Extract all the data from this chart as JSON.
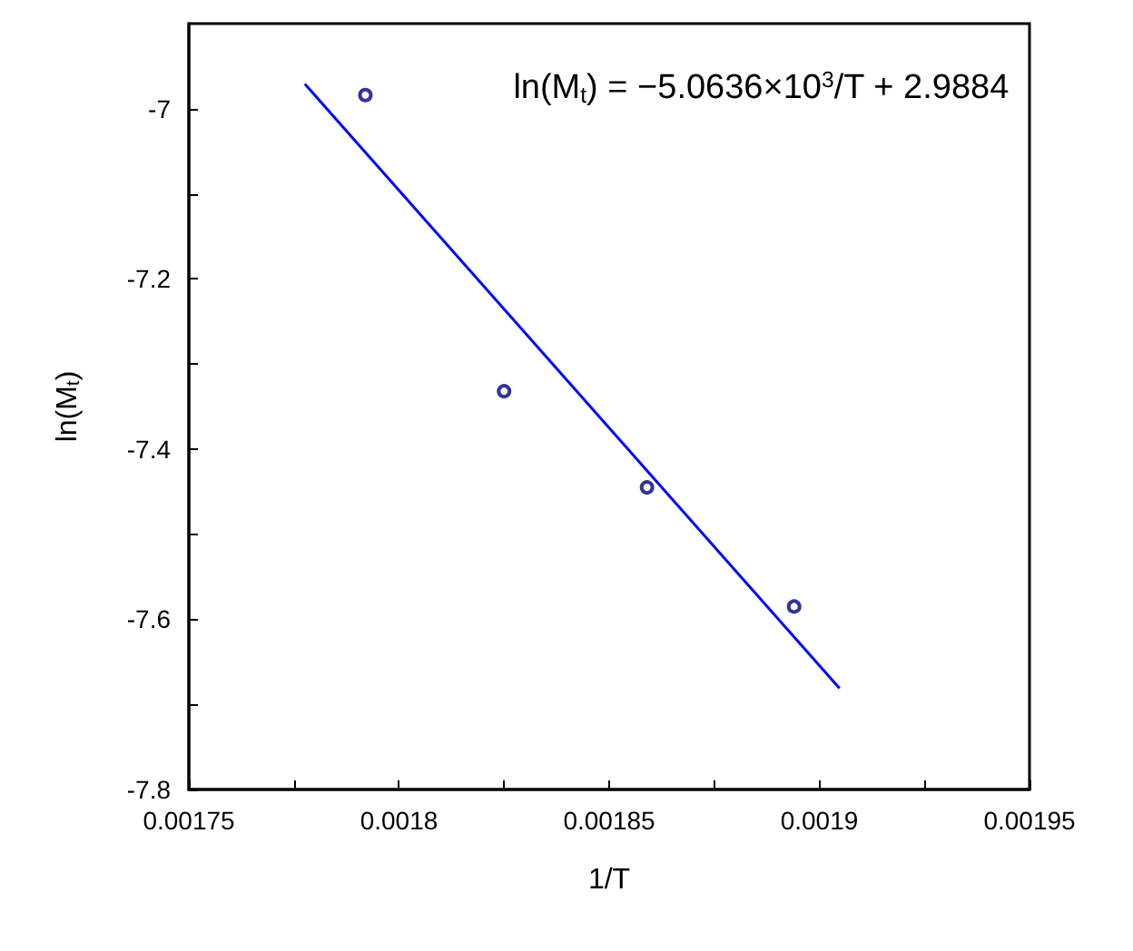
{
  "chart_data": {
    "type": "scatter",
    "xlabel": "1/T",
    "ylabel": "ln(M$_{t}$)",
    "annotations": [
      "ln(M$_{t}$) = −5.0636×10$^{3}$/T + 2.9884"
    ],
    "xlim": [
      0.00175,
      0.00195
    ],
    "xticks": [
      0.00175,
      {
        "value": 0.001775,
        "label": null
      },
      0.0018,
      {
        "value": 0.001825,
        "label": null
      },
      0.00185,
      {
        "value": 0.001875,
        "label": null
      },
      0.0019,
      {
        "value": 0.001925,
        "label": null
      },
      0.00195
    ],
    "ylim": [
      -7.8,
      -6.9
    ],
    "yticks": [
      -7.8,
      {
        "value": -7.7,
        "label": null
      },
      -7.6,
      {
        "value": -7.5,
        "label": null
      },
      -7.4,
      {
        "value": -7.3,
        "label": null
      },
      -7.2,
      {
        "value": -7.1,
        "label": null
      },
      -7
    ],
    "grid": false,
    "marker": "circle",
    "series": [
      {
        "color": "#000080",
        "x": [
          0.001792,
          0.001825,
          0.001859,
          0.001894
        ],
        "values": [
          -6.984,
          -7.332,
          -7.445,
          -7.585
        ]
      },
      {
        "type": "line",
        "color": "#0000ff",
        "marker": "none",
        "x": [
          0.0017776,
          0.0019048
        ],
        "values": [
          -6.971,
          -7.681
        ]
      }
    ]
  }
}
